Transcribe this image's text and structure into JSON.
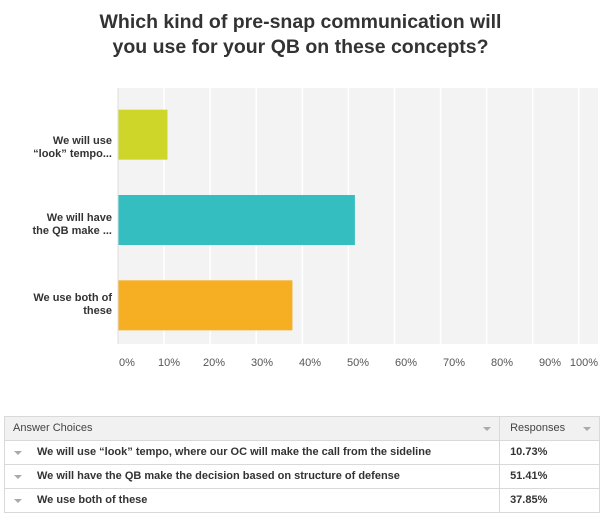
{
  "chart_data": {
    "type": "bar",
    "orientation": "horizontal",
    "title_lines": [
      "Which kind of pre-snap communication will",
      "you use for your QB on these concepts?"
    ],
    "categories": [
      [
        "We will use",
        "“look” tempo..."
      ],
      [
        "We will have",
        "the QB make ..."
      ],
      [
        "We use both of",
        "these"
      ]
    ],
    "values": [
      10.73,
      51.41,
      37.85
    ],
    "colors": [
      "#cfd62a",
      "#34bec0",
      "#f6ae22"
    ],
    "xticks": [
      "0%",
      "10%",
      "20%",
      "30%",
      "40%",
      "50%",
      "60%",
      "70%",
      "80%",
      "90%",
      "100%"
    ],
    "xlim": [
      0,
      100
    ],
    "grid": true
  },
  "table": {
    "headers": [
      "Answer Choices",
      "Responses"
    ],
    "rows": [
      {
        "choice": "We will use “look” tempo, where our OC will make the call from the sideline",
        "response": "10.73%"
      },
      {
        "choice": "We will have the QB make the decision based on structure of defense",
        "response": "51.41%"
      },
      {
        "choice": "We use both of these",
        "response": "37.85%"
      }
    ]
  }
}
